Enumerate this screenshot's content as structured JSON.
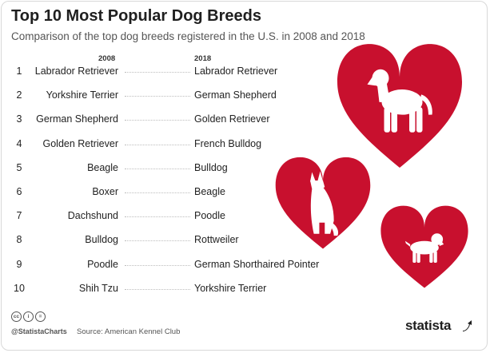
{
  "title": "Top 10 Most Popular Dog Breeds",
  "subtitle": "Comparison of the top dog breeds registered in the U.S. in 2008 and 2018",
  "chart_data": {
    "type": "table",
    "columns": [
      "2008",
      "2018"
    ],
    "rows": [
      {
        "rank": "1",
        "y2008": "Labrador Retriever",
        "y2018": "Labrador Retriever"
      },
      {
        "rank": "2",
        "y2008": "Yorkshire Terrier",
        "y2018": "German Shepherd"
      },
      {
        "rank": "3",
        "y2008": "German Shepherd",
        "y2018": "Golden Retriever"
      },
      {
        "rank": "4",
        "y2008": "Golden Retriever",
        "y2018": "French Bulldog"
      },
      {
        "rank": "5",
        "y2008": "Beagle",
        "y2018": "Bulldog"
      },
      {
        "rank": "6",
        "y2008": "Boxer",
        "y2018": "Beagle"
      },
      {
        "rank": "7",
        "y2008": "Dachshund",
        "y2018": "Poodle"
      },
      {
        "rank": "8",
        "y2008": "Bulldog",
        "y2018": "Rottweiler"
      },
      {
        "rank": "9",
        "y2008": "Poodle",
        "y2018": "German Shorthaired Pointer"
      },
      {
        "rank": "10",
        "y2008": "Shih Tzu",
        "y2018": "Yorkshire Terrier"
      }
    ]
  },
  "footer": {
    "handle": "@StatistaCharts",
    "source": "Source: American Kennel Club",
    "brand": "statista",
    "license_icons": [
      "cc-icon",
      "by-icon",
      "nd-icon"
    ]
  },
  "colors": {
    "heart": "#c8102e",
    "text": "#222222",
    "muted": "#555555"
  }
}
